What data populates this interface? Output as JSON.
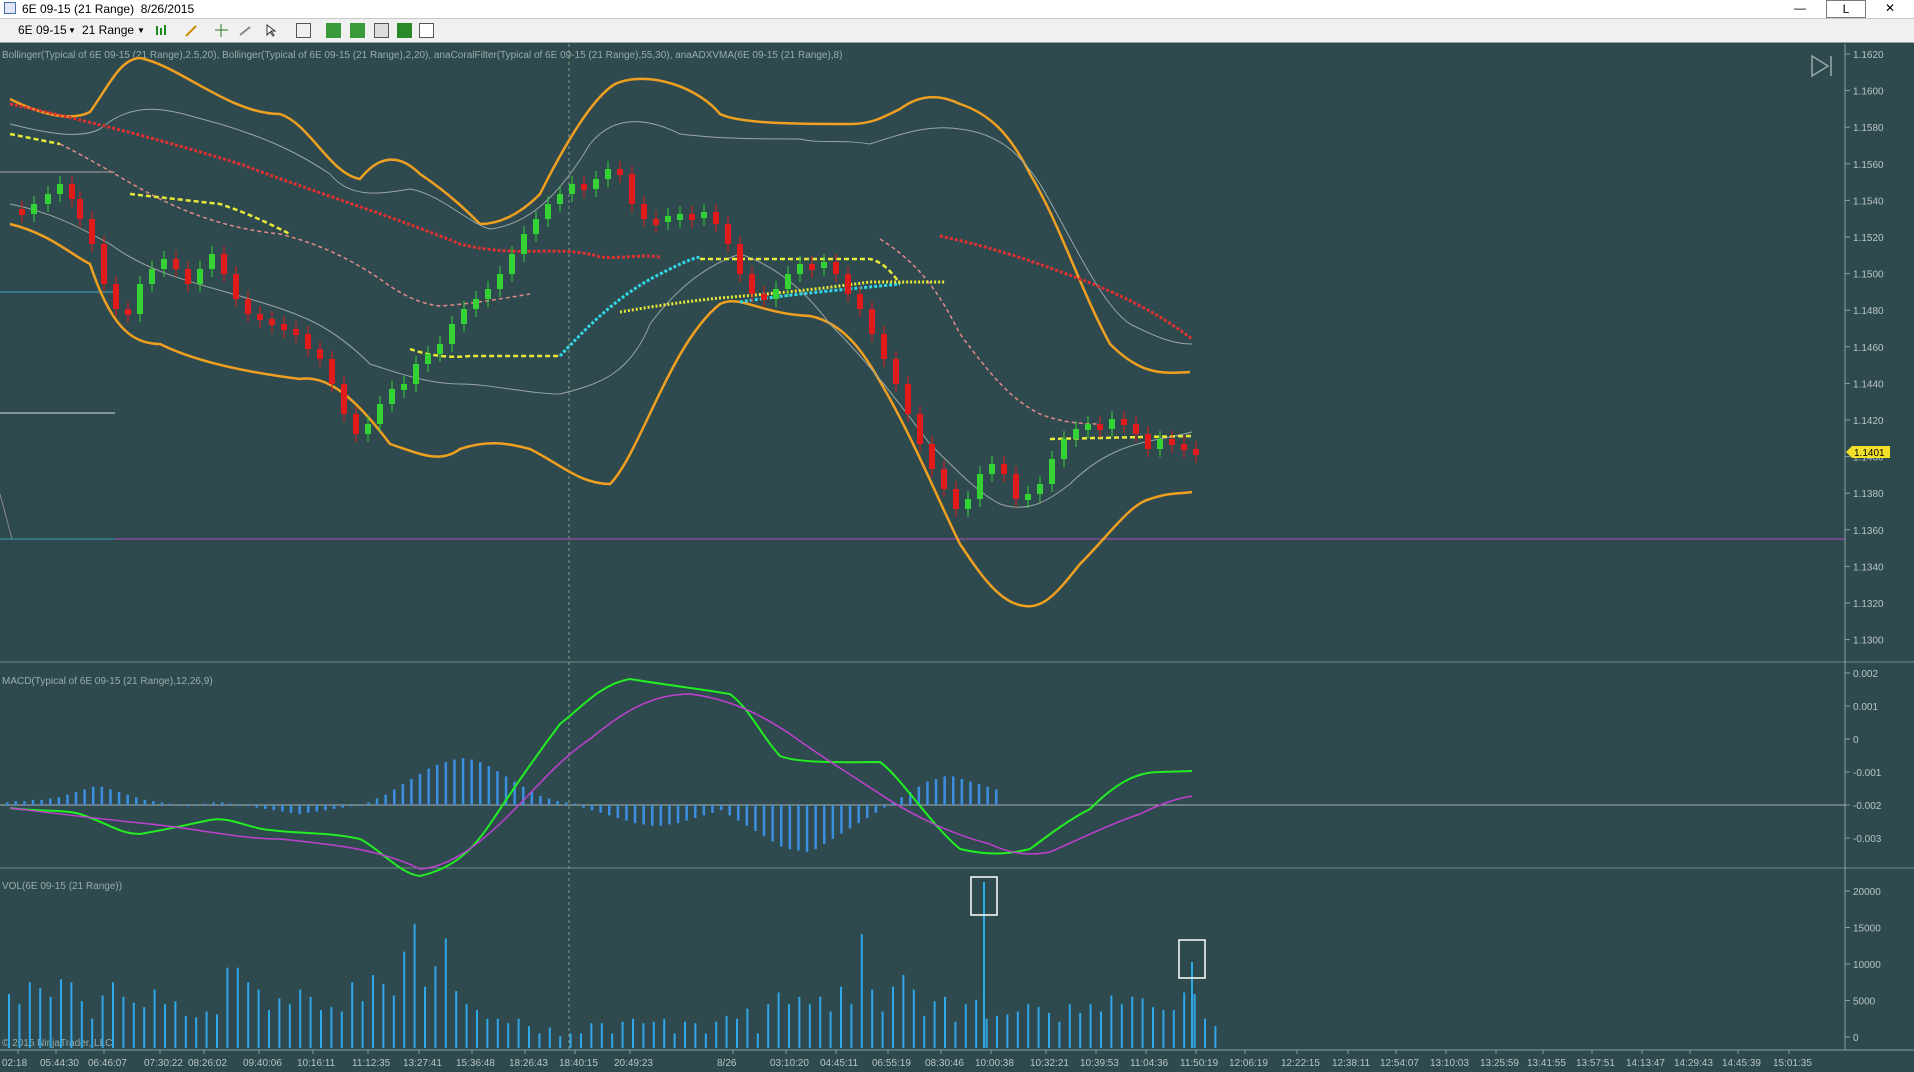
{
  "window": {
    "title": "6E 09-15 (21 Range)  8/26/2015",
    "minimize": "—",
    "restore": "L",
    "close": "✕"
  },
  "toolbar": {
    "instrument": "6E 09-15",
    "interval": "21 Range",
    "icons": [
      "chevron-down-icon",
      "bar-style-icon",
      "pencil-icon",
      "crosshair-icon",
      "pointer-icon",
      "data-box-icon",
      "zoom-icon",
      "properties-icon",
      "dollar-icon",
      "indicator-icon"
    ]
  },
  "colors": {
    "background": "#2f4a4e",
    "up": "#35d235",
    "down": "#e11b1b",
    "bollinger_outer": "#f0a020",
    "macd": "#22ee22",
    "signal": "#c040d0",
    "hist": "#3b8fe0",
    "volume": "#2fa8e8"
  },
  "price_panel": {
    "label": "Bollinger(Typical of 6E 09-15 (21 Range),2.5,20), Bollinger(Typical of 6E 09-15 (21 Range),2,20), anaCoralFilter(Typical of 6E 09-15 (21 Range),55,30), anaADXVMA(6E 09-15 (21 Range),8)",
    "ticks": [
      "1.1620",
      "1.1600",
      "1.1580",
      "1.1560",
      "1.1540",
      "1.1520",
      "1.1500",
      "1.1480",
      "1.1460",
      "1.1440",
      "1.1420",
      "1.1400",
      "1.1380",
      "1.1360",
      "1.1340",
      "1.1320",
      "1.1300"
    ],
    "last_price": "1.1401"
  },
  "macd_panel": {
    "label": "MACD(Typical of 6E 09-15 (21 Range),12,26,9)",
    "ticks": [
      "0.002",
      "0.001",
      "0",
      "-0.001",
      "-0.002",
      "-0.003"
    ]
  },
  "volume_panel": {
    "label": "VOL(6E 09-15 (21 Range))",
    "ticks": [
      "20000",
      "15000",
      "10000",
      "5000",
      "0"
    ]
  },
  "copyright": "© 2015 NinjaTrader, LLC",
  "time_axis": [
    "02:18",
    "05:44:30",
    "06:46:07",
    "07:30:22",
    "08:26:02",
    "09:40:06",
    "10:16:11",
    "11:12:35",
    "13:27:41",
    "15:36:48",
    "18:26:43",
    "18:40:15",
    "20:49:23",
    "8/26",
    "03:10:20",
    "04:45:11",
    "06:55:19",
    "08:30:46",
    "10:00:38",
    "10:32:21",
    "10:39:53",
    "11:04:36",
    "11:50:19",
    "12:06:19",
    "12:22:15",
    "12:38:11",
    "12:54:07",
    "13:10:03",
    "13:25:59",
    "13:41:55",
    "13:57:51",
    "14:13:47",
    "14:29:43",
    "14:45:39",
    "15:01:35"
  ]
}
